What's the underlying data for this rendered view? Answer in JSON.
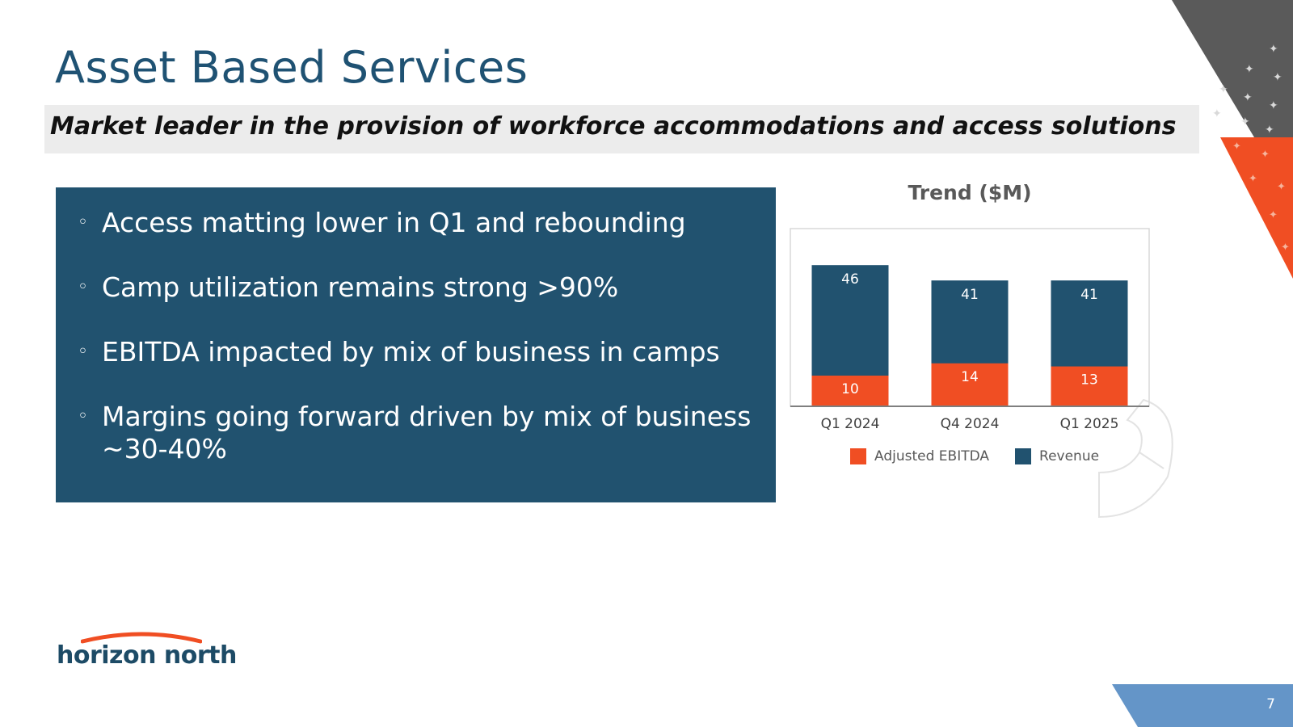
{
  "slide": {
    "title": "Asset Based Services",
    "subtitle": "Market leader in the provision of workforce accommodations and access solutions",
    "page_number": "7"
  },
  "bullets": [
    "Access matting lower in Q1 and rebounding",
    "Camp utilization remains strong >90%",
    "EBITDA impacted by mix of business in camps",
    "Margins going forward driven by mix of business ~30-40%"
  ],
  "logo": {
    "text": "horizon north"
  },
  "colors": {
    "accent_blue": "#21526f",
    "accent_orange": "#f04e23",
    "title_blue": "#1f5273",
    "footer_blue": "#6495c8",
    "corner_gray": "#595959"
  },
  "chart_data": {
    "type": "bar",
    "stacked": false,
    "overlapped": true,
    "title": "Trend ($M)",
    "categories": [
      "Q1 2024",
      "Q4 2024",
      "Q1 2025"
    ],
    "series": [
      {
        "name": "Adjusted EBITDA",
        "values": [
          10,
          14,
          13
        ],
        "color": "#f04e23"
      },
      {
        "name": "Revenue",
        "values": [
          46,
          41,
          41
        ],
        "color": "#21526f"
      }
    ],
    "legend_position": "bottom",
    "grid": false
  }
}
